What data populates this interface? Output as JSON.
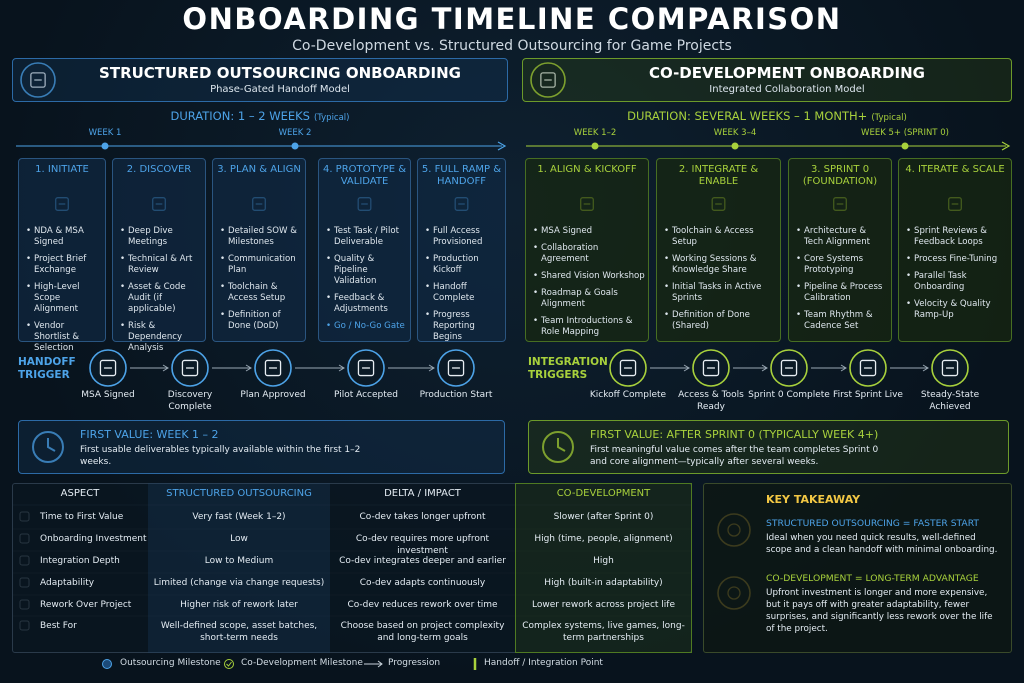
{
  "header": {
    "title": "ONBOARDING TIMELINE COMPARISON",
    "subtitle": "Co-Development vs. Structured Outsourcing for Game Projects"
  },
  "left": {
    "title": "STRUCTURED OUTSOURCING ONBOARDING",
    "subtitle": "Phase-Gated Handoff Model",
    "duration": "DURATION: 1 – 2 WEEKS",
    "duration_note": "(Typical)",
    "weeks": [
      "WEEK 1",
      "WEEK 2"
    ],
    "phases": [
      {
        "title": "1. INITIATE",
        "items": [
          "NDA & MSA Signed",
          "Project Brief Exchange",
          "High-Level Scope Alignment",
          "Vendor Shortlist & Selection"
        ]
      },
      {
        "title": "2. DISCOVER",
        "items": [
          "Deep Dive Meetings",
          "Technical & Art Review",
          "Asset & Code Audit (if applicable)",
          "Risk & Dependency Analysis"
        ]
      },
      {
        "title": "3. PLAN & ALIGN",
        "items": [
          "Detailed SOW & Milestones",
          "Communication Plan",
          "Toolchain & Access Setup",
          "Definition of Done (DoD)"
        ]
      },
      {
        "title": "4. PROTOTYPE & VALIDATE",
        "items": [
          "Test Task / Pilot Deliverable",
          "Quality & Pipeline Validation",
          "Feedback & Adjustments",
          "Go / No-Go Gate"
        ]
      },
      {
        "title": "5. FULL RAMP & HANDOFF",
        "items": [
          "Full Access Provisioned",
          "Production Kickoff",
          "Handoff Complete",
          "Progress Reporting Begins"
        ]
      }
    ],
    "trigger_label": "HANDOFF TRIGGER",
    "triggers": [
      "MSA Signed",
      "Discovery Complete",
      "Plan Approved",
      "Pilot Accepted",
      "Production Start"
    ],
    "first_value": {
      "title": "FIRST VALUE: WEEK 1 – 2",
      "text": "First usable deliverables typically available within the first 1–2 weeks."
    }
  },
  "right": {
    "title": "CO-DEVELOPMENT ONBOARDING",
    "subtitle": "Integrated Collaboration Model",
    "duration": "DURATION: SEVERAL WEEKS – 1 MONTH+",
    "duration_note": "(Typical)",
    "weeks": [
      "WEEK 1–2",
      "WEEK 3–4",
      "WEEK 5+ (SPRINT 0)"
    ],
    "phases": [
      {
        "title": "1. ALIGN & KICKOFF",
        "items": [
          "MSA Signed",
          "Collaboration Agreement",
          "Shared Vision Workshop",
          "Roadmap & Goals Alignment",
          "Team Introductions & Role Mapping"
        ]
      },
      {
        "title": "2. INTEGRATE & ENABLE",
        "items": [
          "Toolchain & Access Setup",
          "Working Sessions & Knowledge Share",
          "Initial Tasks in Active Sprints",
          "Definition of Done (Shared)"
        ]
      },
      {
        "title": "3. SPRINT 0 (FOUNDATION)",
        "items": [
          "Architecture & Tech Alignment",
          "Core Systems Prototyping",
          "Pipeline & Process Calibration",
          "Team Rhythm & Cadence Set"
        ]
      },
      {
        "title": "4. ITERATE & SCALE",
        "items": [
          "Sprint Reviews & Feedback Loops",
          "Process Fine-Tuning",
          "Parallel Task Onboarding",
          "Velocity & Quality Ramp-Up"
        ]
      }
    ],
    "trigger_label": "INTEGRATION TRIGGERS",
    "triggers": [
      "Kickoff Complete",
      "Access & Tools Ready",
      "Sprint 0 Complete",
      "First Sprint Live",
      "Steady-State Achieved"
    ],
    "first_value": {
      "title": "FIRST VALUE: AFTER SPRINT 0 (TYPICALLY WEEK 4+)",
      "text": "First meaningful value comes after the team completes Sprint 0 and core alignment—typically after several weeks."
    }
  },
  "table": {
    "headers": [
      "ASPECT",
      "STRUCTURED OUTSOURCING",
      "DELTA / IMPACT",
      "CO-DEVELOPMENT"
    ],
    "rows": [
      [
        "Time to First Value",
        "Very fast (Week 1–2)",
        "Co-dev takes longer upfront",
        "Slower (after Sprint 0)"
      ],
      [
        "Onboarding Investment",
        "Low",
        "Co-dev requires more upfront investment",
        "High (time, people, alignment)"
      ],
      [
        "Integration Depth",
        "Low to Medium",
        "Co-dev integrates deeper and earlier",
        "High"
      ],
      [
        "Adaptability",
        "Limited (change via change requests)",
        "Co-dev adapts continuously",
        "High (built-in adaptability)"
      ],
      [
        "Rework Over Project",
        "Higher risk of rework later",
        "Co-dev reduces rework over time",
        "Lower rework across project life"
      ],
      [
        "Best For",
        "Well-defined scope, asset batches, short-term needs",
        "Choose based on project complexity and long-term goals",
        "Complex systems, live games, long-term partnerships"
      ]
    ]
  },
  "takeaway": {
    "title": "KEY TAKEAWAY",
    "points": [
      {
        "title": "STRUCTURED OUTSOURCING = FASTER START",
        "text": "Ideal when you need quick results, well-defined scope and a clean handoff with minimal onboarding."
      },
      {
        "title": "CO-DEVELOPMENT = LONG-TERM ADVANTAGE",
        "text": "Upfront investment is longer and more expensive, but it pays off with greater adaptability, fewer surprises, and significantly less rework over the life of the project."
      }
    ]
  },
  "legend": [
    "Outsourcing Milestone",
    "Co-Development Milestone",
    "Progression",
    "Handoff / Integration Point"
  ]
}
